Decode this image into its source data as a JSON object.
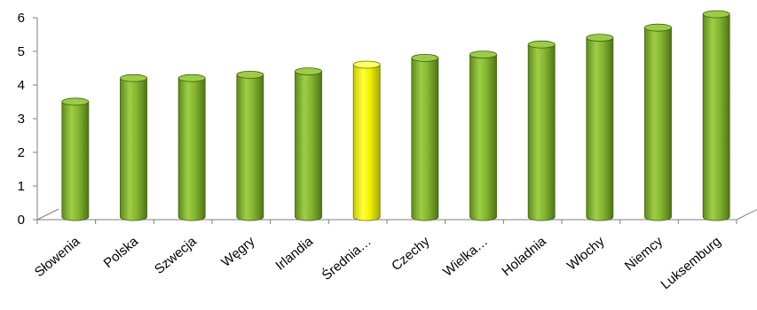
{
  "chart_data": {
    "type": "bar",
    "style": "3d-cylinder",
    "categories": [
      "Słowenia",
      "Polska",
      "Szwecja",
      "Węgry",
      "Irlandia",
      "Średnia…",
      "Czechy",
      "Wielka…",
      "Holadnia",
      "Włochy",
      "Niemcy",
      "Luksemburg"
    ],
    "values": [
      3.4,
      4.1,
      4.1,
      4.2,
      4.3,
      4.5,
      4.7,
      4.8,
      5.1,
      5.3,
      5.6,
      6.0
    ],
    "highlight_index": 5,
    "colors": {
      "default": "#8ab934",
      "highlight": "#ffff00"
    },
    "ylim": [
      0,
      6
    ],
    "yticks": [
      "0",
      "1",
      "2",
      "3",
      "4",
      "5",
      "6"
    ],
    "grid": false,
    "legend": "none"
  }
}
